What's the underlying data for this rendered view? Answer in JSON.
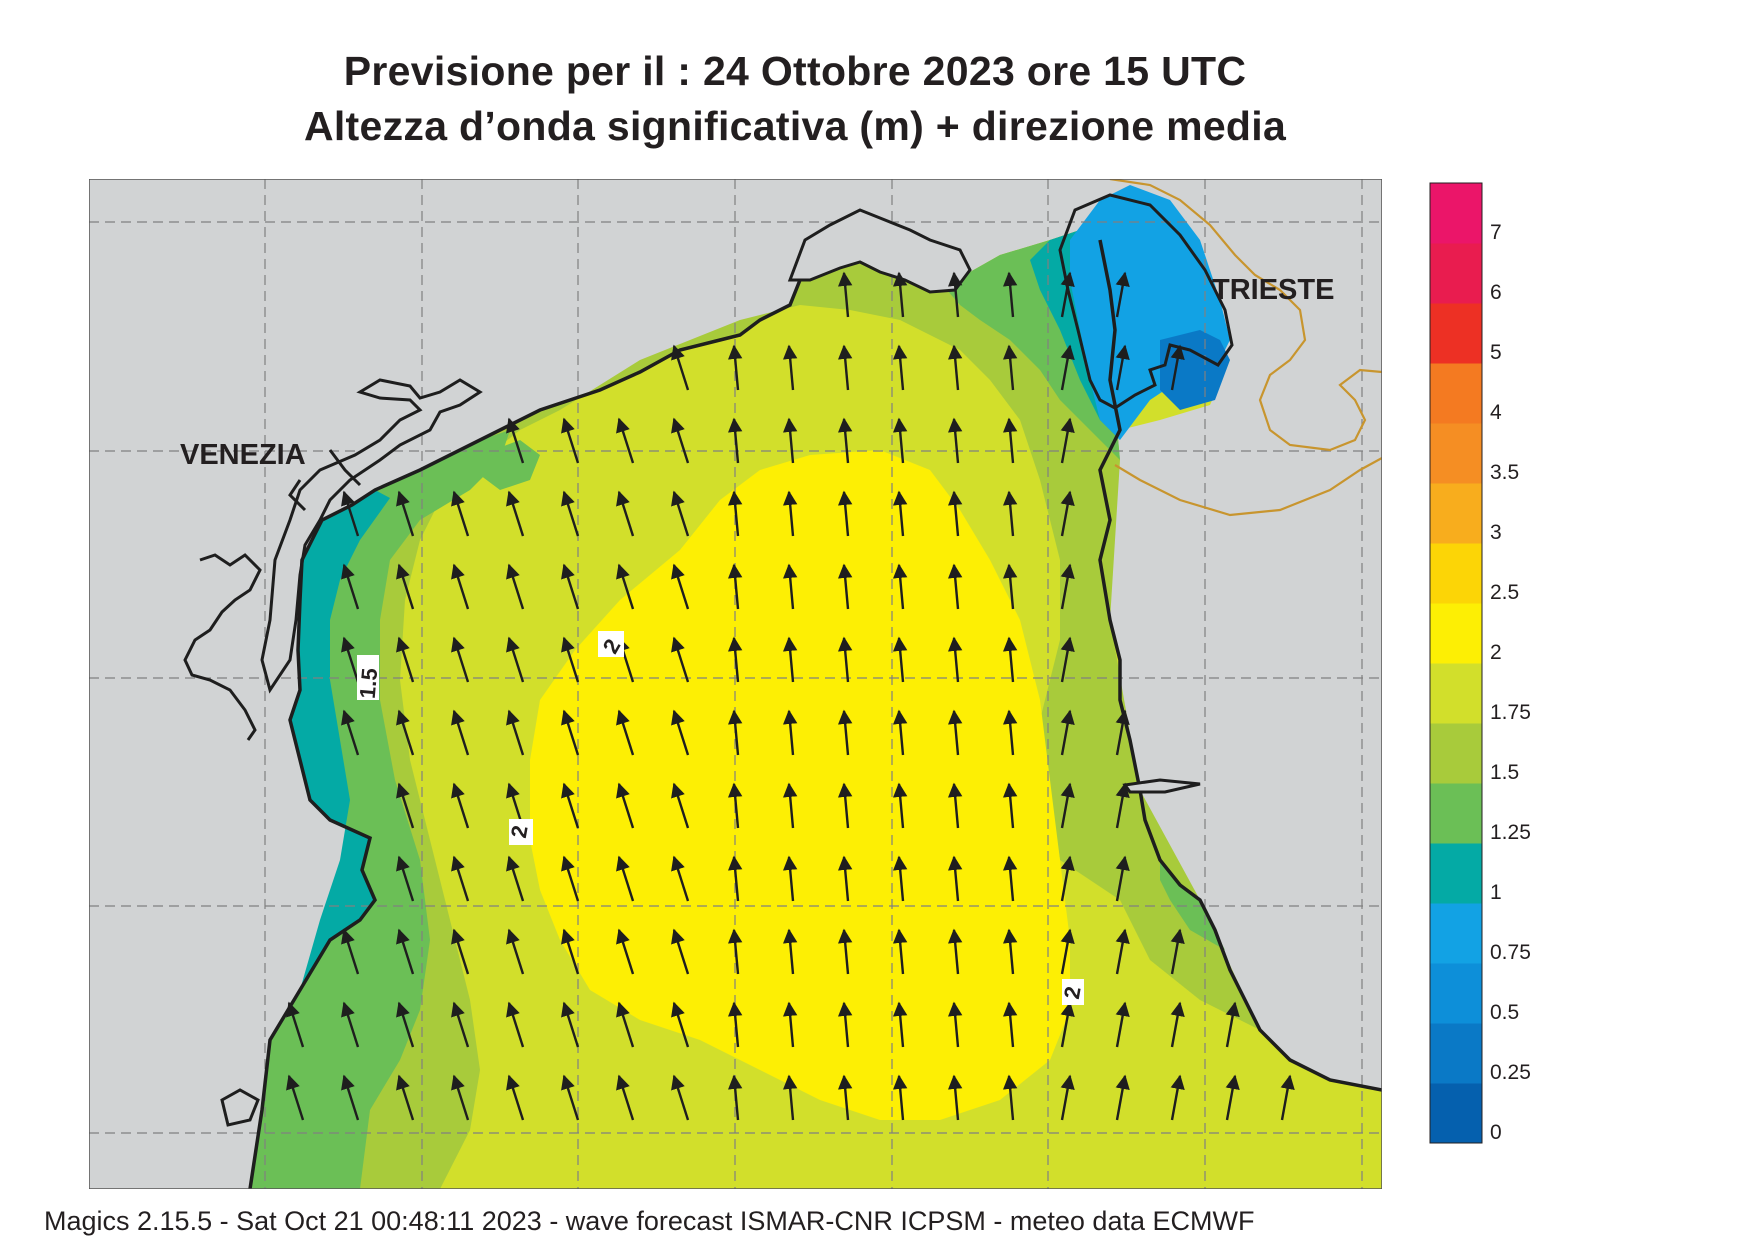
{
  "title": {
    "line1": "Previsione per il  :  24  Ottobre  2023   ore 15 UTC",
    "line2": "Altezza d’onda significativa (m) + direzione media"
  },
  "places": {
    "venezia": "VENEZIA",
    "trieste": "TRIESTE"
  },
  "contour_labels": [
    "1.5",
    "2",
    "2",
    "2"
  ],
  "legend": {
    "ticks": [
      "0",
      "0.25",
      "0.5",
      "0.75",
      "1",
      "1.25",
      "1.5",
      "1.75",
      "2",
      "2.5",
      "3",
      "3.5",
      "4",
      "5",
      "6",
      "7"
    ],
    "colors": [
      "#0560ae",
      "#0a79c6",
      "#0d8fd9",
      "#12a2e4",
      "#04aaa5",
      "#6bbf56",
      "#a8cb3b",
      "#d2df2b",
      "#fdef04",
      "#fcd506",
      "#f8ad1d",
      "#f58e23",
      "#f47a21",
      "#ed3024",
      "#e91c4f",
      "#eb1569"
    ]
  },
  "colors": {
    "land": "#d1d3d4",
    "coast": "#1e1e1e",
    "border": "#c8952e",
    "grid": "#808080"
  },
  "wave_direction": "NNW",
  "footer": "Magics 2.15.5 - Sat Oct 21 00:48:11 2023 - wave forecast  ISMAR-CNR  ICPSM - meteo data   ECMWF"
}
